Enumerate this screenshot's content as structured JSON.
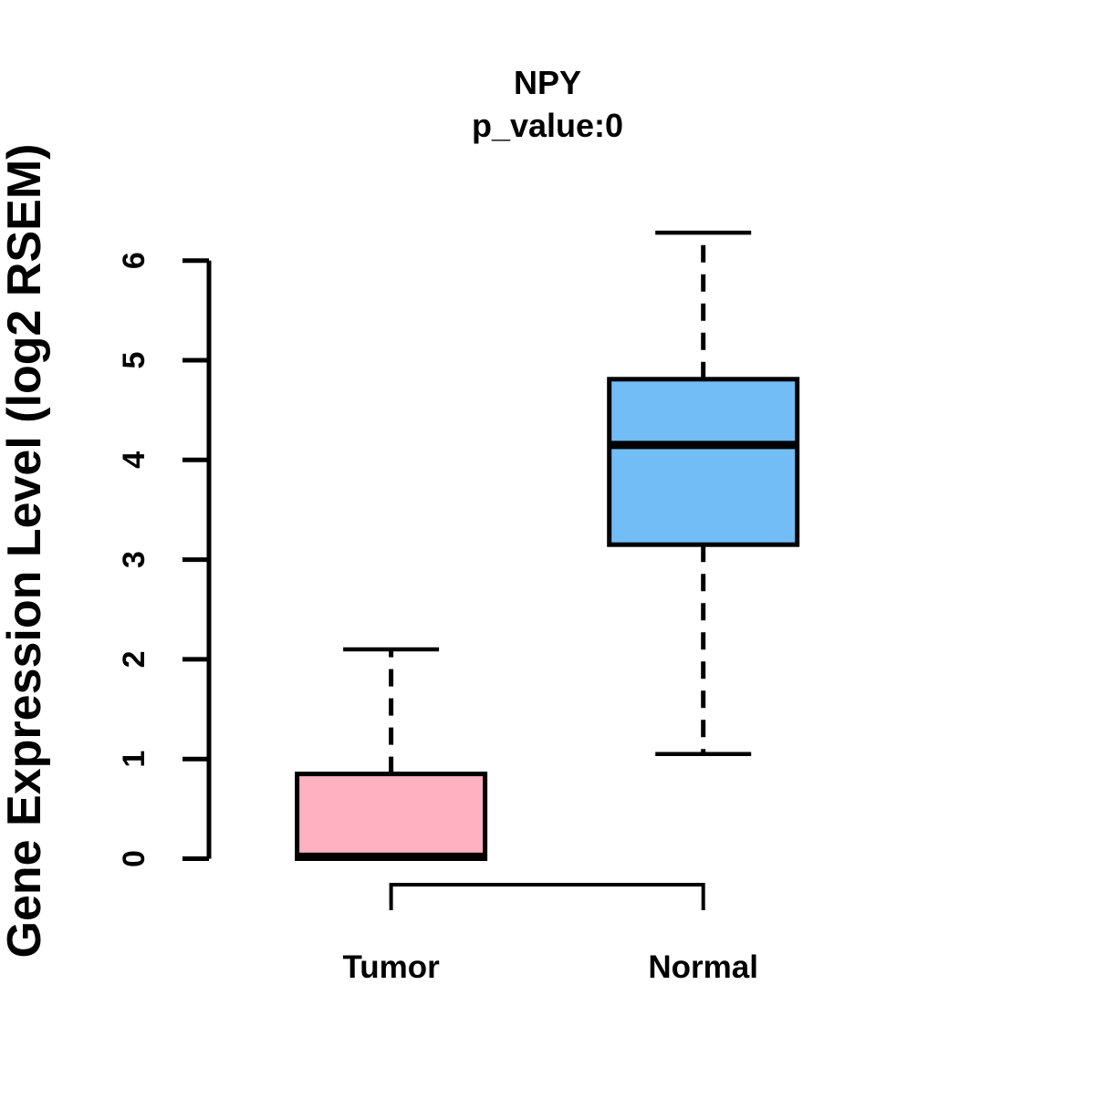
{
  "chart_data": {
    "type": "boxplot",
    "title": "NPY",
    "subtitle": "p_value:0",
    "ylabel": "Gene Expression Level (log2 RSEM)",
    "xlabel": "",
    "categories": [
      "Tumor",
      "Normal"
    ],
    "yticks": [
      0,
      1,
      2,
      3,
      4,
      5,
      6
    ],
    "ylim": [
      0,
      6.3
    ],
    "grid": false,
    "legend": "none",
    "series": [
      {
        "name": "Tumor",
        "color": "#FFB0C1",
        "min": 0,
        "q1": 0,
        "median": 0.02,
        "q3": 0.85,
        "max": 2.1
      },
      {
        "name": "Normal",
        "color": "#73BDF6",
        "min": 1.05,
        "q1": 3.15,
        "median": 4.15,
        "q3": 4.81,
        "max": 6.28
      }
    ],
    "significance_bracket": {
      "between": [
        "Tumor",
        "Normal"
      ]
    },
    "colors": {
      "stroke": "#000000",
      "background": "#ffffff"
    }
  }
}
